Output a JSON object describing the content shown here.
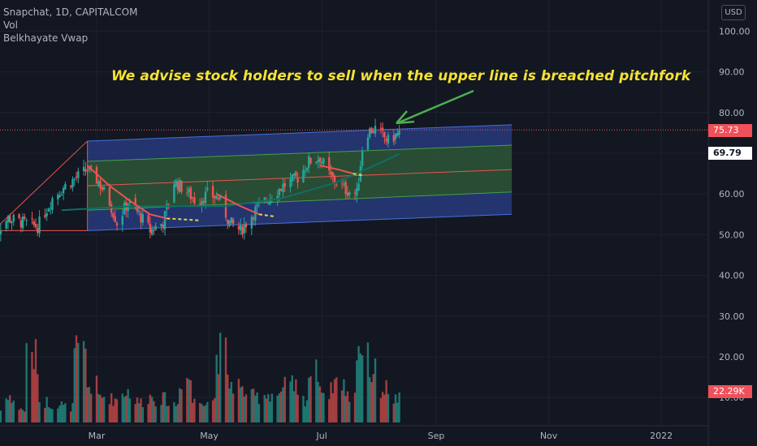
{
  "legend": {
    "symbol_line": "Snapchat, 1D, CAPITALCOM",
    "indicator_1": "Vol",
    "indicator_2": "Belkhayate Vwap"
  },
  "currency": "USD",
  "annotation": "We advise stock holders to sell when the upper line is breached pitchfork",
  "badges": {
    "last_price": "75.73",
    "last_price_color": "#f0505a",
    "vwap_value": "69.79",
    "vwap_color": "#131722",
    "volume": "22.29K",
    "volume_color": "#f0505a"
  },
  "colors": {
    "background": "#131722",
    "up": "#26a69a",
    "down": "#ef5350",
    "fork_outer_fill": "#2a3f8a",
    "fork_inner_fill": "#2f5a3a",
    "median_line": "#ef5350",
    "arrow": "#4caf50"
  },
  "chart_data": {
    "type": "candlestick",
    "y_axis": {
      "ticks": [
        "100.00",
        "90.00",
        "80.00",
        "70.00",
        "60.00",
        "50.00",
        "40.00",
        "30.00",
        "20.00",
        "10.00"
      ],
      "range": [
        0,
        105
      ]
    },
    "x_axis": {
      "ticks": [
        "Mar",
        "May",
        "Jul",
        "Sep",
        "Nov",
        "2022"
      ]
    },
    "price_path": [
      {
        "date": "2021-01-04",
        "close": 50
      },
      {
        "date": "2021-01-12",
        "close": 54
      },
      {
        "date": "2021-01-20",
        "close": 53
      },
      {
        "date": "2021-01-28",
        "close": 52
      },
      {
        "date": "2021-02-05",
        "close": 59
      },
      {
        "date": "2021-02-12",
        "close": 62
      },
      {
        "date": "2021-02-18",
        "close": 64
      },
      {
        "date": "2021-02-24",
        "close": 66
      },
      {
        "date": "2021-03-02",
        "close": 63
      },
      {
        "date": "2021-03-08",
        "close": 58
      },
      {
        "date": "2021-03-12",
        "close": 53
      },
      {
        "date": "2021-03-18",
        "close": 58
      },
      {
        "date": "2021-03-24",
        "close": 55
      },
      {
        "date": "2021-03-30",
        "close": 51
      },
      {
        "date": "2021-04-06",
        "close": 53
      },
      {
        "date": "2021-04-12",
        "close": 63
      },
      {
        "date": "2021-04-18",
        "close": 61
      },
      {
        "date": "2021-04-24",
        "close": 58
      },
      {
        "date": "2021-04-30",
        "close": 60
      },
      {
        "date": "2021-05-06",
        "close": 59
      },
      {
        "date": "2021-05-12",
        "close": 53
      },
      {
        "date": "2021-05-18",
        "close": 51
      },
      {
        "date": "2021-05-26",
        "close": 56
      },
      {
        "date": "2021-06-02",
        "close": 59
      },
      {
        "date": "2021-06-10",
        "close": 62
      },
      {
        "date": "2021-06-18",
        "close": 64
      },
      {
        "date": "2021-06-24",
        "close": 68
      },
      {
        "date": "2021-06-30",
        "close": 69
      },
      {
        "date": "2021-07-06",
        "close": 64
      },
      {
        "date": "2021-07-14",
        "close": 61
      },
      {
        "date": "2021-07-20",
        "close": 60
      },
      {
        "date": "2021-07-24",
        "close": 75
      },
      {
        "date": "2021-07-30",
        "close": 76
      },
      {
        "date": "2021-08-06",
        "close": 73
      },
      {
        "date": "2021-08-12",
        "close": 75
      }
    ],
    "volume_path": [
      6,
      9,
      5,
      25,
      8,
      7,
      6,
      26,
      14,
      10,
      9,
      12,
      8,
      10,
      9,
      7,
      17,
      8,
      9,
      27,
      15,
      12,
      10,
      11,
      11,
      14,
      9,
      19,
      12,
      16,
      10,
      30,
      19,
      13,
      9
    ],
    "pitchfork": {
      "pivots": [
        {
          "date": "2021-01-04",
          "price": 51
        },
        {
          "date": "2021-02-24",
          "price": 73
        },
        {
          "date": "2021-02-24",
          "price": 51
        }
      ],
      "outer_upper": [
        {
          "date": "2021-02-24",
          "price": 73
        },
        {
          "date": "2021-10-12",
          "price": 77
        }
      ],
      "inner_upper": [
        {
          "date": "2021-02-24",
          "price": 68
        },
        {
          "date": "2021-10-12",
          "price": 72
        }
      ],
      "median": [
        {
          "date": "2021-02-24",
          "price": 62
        },
        {
          "date": "2021-10-12",
          "price": 66
        }
      ],
      "inner_lower": [
        {
          "date": "2021-02-24",
          "price": 56
        },
        {
          "date": "2021-10-12",
          "price": 60.5
        }
      ],
      "outer_lower": [
        {
          "date": "2021-02-24",
          "price": 51
        },
        {
          "date": "2021-10-12",
          "price": 55
        }
      ]
    },
    "last_price": 75.73,
    "vwap_last": 69.79
  }
}
